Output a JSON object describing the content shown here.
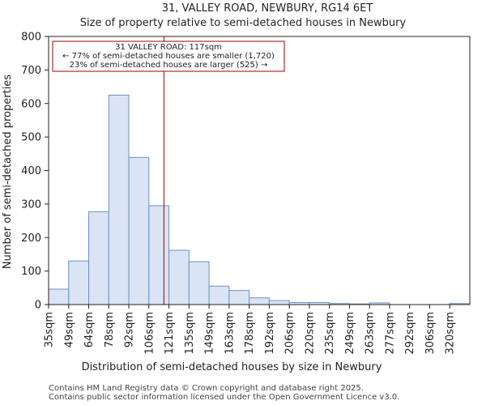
{
  "chart_data": {
    "type": "bar",
    "title_line1": "31, VALLEY ROAD, NEWBURY, RG14 6ET",
    "title_line2": "Size of property relative to semi-detached houses in Newbury",
    "xlabel": "Distribution of semi-detached houses by size in Newbury",
    "ylabel": "Number of semi-detached properties",
    "ylim": [
      0,
      800
    ],
    "yticks": [
      0,
      100,
      200,
      300,
      400,
      500,
      600,
      700,
      800
    ],
    "categories": [
      "35sqm",
      "49sqm",
      "64sqm",
      "78sqm",
      "92sqm",
      "106sqm",
      "121sqm",
      "135sqm",
      "149sqm",
      "163sqm",
      "178sqm",
      "192sqm",
      "206sqm",
      "220sqm",
      "235sqm",
      "249sqm",
      "263sqm",
      "277sqm",
      "292sqm",
      "306sqm",
      "320sqm"
    ],
    "values": [
      46,
      130,
      277,
      625,
      439,
      295,
      162,
      128,
      55,
      42,
      20,
      12,
      6,
      6,
      3,
      2,
      5,
      0,
      0,
      0,
      3
    ],
    "bar_color": "#dae4f4",
    "bar_edge_color": "#6f8fc8",
    "marker": {
      "value_sqm": 117,
      "bin_position": 5.75,
      "color": "#a00000",
      "annotation_lines": [
        "31 VALLEY ROAD: 117sqm",
        "← 77% of semi-detached houses are smaller (1,720)",
        "23% of semi-detached houses are larger (525) →"
      ]
    },
    "grid": false
  },
  "footer": {
    "line1": "Contains HM Land Registry data © Crown copyright and database right 2025.",
    "line2": "Contains public sector information licensed under the Open Government Licence v3.0."
  }
}
